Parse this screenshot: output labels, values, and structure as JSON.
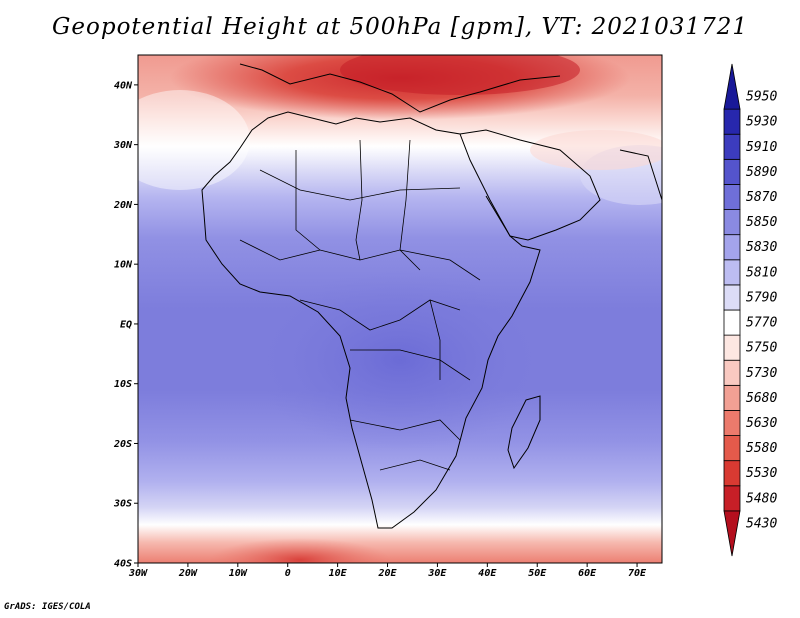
{
  "title": "Geopotential Height at 500hPa [gpm], VT: 2021031721",
  "footer": "GrADS: IGES/COLA",
  "map": {
    "lon_range": [
      -30,
      75
    ],
    "lat_range": [
      -40,
      45
    ],
    "lat_ticks": [
      {
        "lat": 40,
        "label": "40N"
      },
      {
        "lat": 30,
        "label": "30N"
      },
      {
        "lat": 20,
        "label": "20N"
      },
      {
        "lat": 10,
        "label": "10N"
      },
      {
        "lat": 0,
        "label": "EQ"
      },
      {
        "lat": -10,
        "label": "10S"
      },
      {
        "lat": -20,
        "label": "20S"
      },
      {
        "lat": -30,
        "label": "30S"
      },
      {
        "lat": -40,
        "label": "40S"
      }
    ],
    "lon_ticks": [
      {
        "lon": -30,
        "label": "30W"
      },
      {
        "lon": -20,
        "label": "20W"
      },
      {
        "lon": -10,
        "label": "10W"
      },
      {
        "lon": 0,
        "label": "0"
      },
      {
        "lon": 10,
        "label": "10E"
      },
      {
        "lon": 20,
        "label": "20E"
      },
      {
        "lon": 30,
        "label": "30E"
      },
      {
        "lon": 40,
        "label": "40E"
      },
      {
        "lon": 50,
        "label": "50E"
      },
      {
        "lon": 60,
        "label": "60E"
      },
      {
        "lon": 70,
        "label": "70E"
      }
    ]
  },
  "colorbar": {
    "levels": [
      "5430",
      "5480",
      "5530",
      "5580",
      "5630",
      "5680",
      "5730",
      "5750",
      "5770",
      "5790",
      "5810",
      "5830",
      "5850",
      "5870",
      "5890",
      "5910",
      "5930",
      "5950"
    ],
    "colors": [
      "#b40f1e",
      "#c71f27",
      "#d93a32",
      "#e45a4b",
      "#ec7a6c",
      "#f2a094",
      "#f9c9c1",
      "#fde7e2",
      "#ffffff",
      "#dcdcf7",
      "#bdbdf2",
      "#a4a4ec",
      "#8a8ae2",
      "#6f6fd9",
      "#5454cc",
      "#3c3cbe",
      "#2727ad",
      "#191998"
    ]
  }
}
